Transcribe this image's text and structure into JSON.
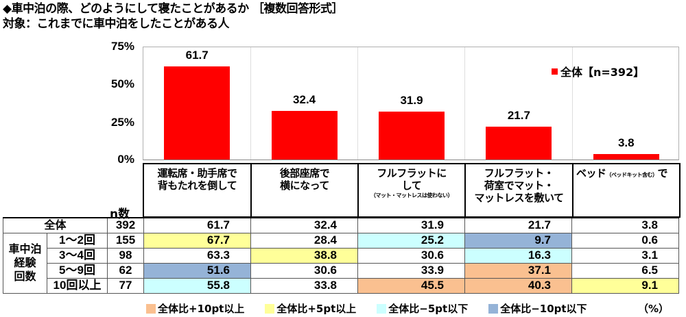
{
  "title": "◆車中泊の際、どのようにして寝たことがあるか ［複数回答形式］",
  "subtitle": "対象：これまでに車中泊をしたことがある人",
  "legend": {
    "label": "全体【n=392】",
    "color": "#ff0000"
  },
  "y_ticks": [
    "75%",
    "50%",
    "25%",
    "0%"
  ],
  "categories": [
    {
      "line1": "運転席・助手席で",
      "line2": "背もたれを倒して",
      "note": ""
    },
    {
      "line1": "後部座席で",
      "line2": "横になって",
      "note": ""
    },
    {
      "line1": "フルフラットに",
      "line2": "して",
      "note": "（マット・マットレスは使わない）"
    },
    {
      "line1": "フルフラット・",
      "line2": "荷室でマット・",
      "line3": "マットレスを敷いて",
      "note": ""
    },
    {
      "line1": "ベッド",
      "inline_note": "（ベッドキット含む）",
      "line1b": "で"
    }
  ],
  "n_header": "n数",
  "table": {
    "total": {
      "label": "全体",
      "n": "392",
      "values": [
        "61.7",
        "32.4",
        "31.9",
        "21.7",
        "3.8"
      ]
    },
    "group_label": "車中泊経験回数",
    "group_label_lines": [
      "車中泊",
      "経験",
      "回数"
    ],
    "rows": [
      {
        "label": "1～2回",
        "n": "155",
        "values": [
          "67.7",
          "28.4",
          "25.2",
          "9.7",
          "0.6"
        ],
        "highlights": [
          "p5",
          "",
          "m5",
          "m10",
          ""
        ]
      },
      {
        "label": "3～4回",
        "n": "98",
        "values": [
          "63.3",
          "38.8",
          "30.6",
          "16.3",
          "3.1"
        ],
        "highlights": [
          "",
          "p5",
          "",
          "m5",
          ""
        ]
      },
      {
        "label": "5～9回",
        "n": "62",
        "values": [
          "51.6",
          "30.6",
          "33.9",
          "37.1",
          "6.5"
        ],
        "highlights": [
          "m10",
          "",
          "",
          "p10",
          ""
        ]
      },
      {
        "label": "10回以上",
        "n": "77",
        "values": [
          "55.8",
          "33.8",
          "45.5",
          "40.3",
          "9.1"
        ],
        "highlights": [
          "m5",
          "",
          "p10",
          "p10",
          "p5"
        ]
      }
    ]
  },
  "highlight_legend": [
    {
      "key": "p10",
      "label": "全体比+10pt以上",
      "color": "#fac090"
    },
    {
      "key": "p5",
      "label": "全体比+5pt以上",
      "color": "#ffff99"
    },
    {
      "key": "m5",
      "label": "全体比−5pt以下",
      "color": "#ccffff"
    },
    {
      "key": "m10",
      "label": "全体比−10pt以下",
      "color": "#95b3d7"
    }
  ],
  "unit": "（%）",
  "chart_data": {
    "type": "bar",
    "title": "◆車中泊の際、どのようにして寝たことがあるか ［複数回答形式］",
    "subtitle": "対象：これまでに車中泊をしたことがある人",
    "categories": [
      "運転席・助手席で背もたれを倒して",
      "後部座席で横になって",
      "フルフラットにして（マット・マットレスは使わない）",
      "フルフラット・荷室でマット・マットレスを敷いて",
      "ベッド（ベッドキット含む）で"
    ],
    "series": [
      {
        "name": "全体【n=392】",
        "values": [
          61.7,
          32.4,
          31.9,
          21.7,
          3.8
        ]
      }
    ],
    "ylim": [
      0,
      75
    ],
    "yticks": [
      0,
      25,
      50,
      75
    ],
    "ylabel": "",
    "xlabel": "",
    "legend_position": "top-right inside",
    "grid": "vertical separators",
    "table": {
      "columns": [
        "n数",
        "運転席・助手席で背もたれを倒して",
        "後部座席で横になって",
        "フルフラットにして",
        "フルフラット・荷室でマット・マットレスを敷いて",
        "ベッドで"
      ],
      "rows": [
        [
          "全体",
          392,
          61.7,
          32.4,
          31.9,
          21.7,
          3.8
        ],
        [
          "1～2回",
          155,
          67.7,
          28.4,
          25.2,
          9.7,
          0.6
        ],
        [
          "3～4回",
          98,
          63.3,
          38.8,
          30.6,
          16.3,
          3.1
        ],
        [
          "5～9回",
          62,
          51.6,
          30.6,
          33.9,
          37.1,
          6.5
        ],
        [
          "10回以上",
          77,
          55.8,
          33.8,
          45.5,
          40.3,
          9.1
        ]
      ]
    }
  }
}
